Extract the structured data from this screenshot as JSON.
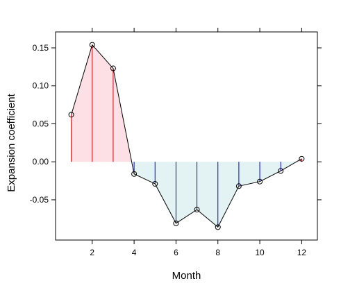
{
  "chart_data": {
    "type": "line",
    "title": "",
    "xlabel": "Month",
    "ylabel": "Expansion coefficient",
    "x": [
      1,
      2,
      3,
      4,
      5,
      6,
      7,
      8,
      9,
      10,
      11,
      12
    ],
    "values": [
      0.062,
      0.154,
      0.123,
      -0.016,
      -0.029,
      -0.081,
      -0.063,
      -0.086,
      -0.032,
      -0.026,
      -0.012,
      0.004
    ],
    "xlim": [
      0.25,
      12.75
    ],
    "ylim": [
      -0.103,
      0.171
    ],
    "xticks": [
      2,
      4,
      6,
      8,
      10,
      12
    ],
    "xtick_labels": [
      "2",
      "4",
      "6",
      "8",
      "10",
      "12"
    ],
    "yticks": [
      0.15,
      0.1,
      0.05,
      0.0,
      -0.05
    ],
    "ytick_labels": [
      "0.15",
      "0.10",
      "0.05",
      "0.00",
      "-0.05"
    ],
    "grid": false,
    "legend": "none",
    "colors": {
      "positive_fill": "#fde0e6",
      "negative_fill": "#e3f2f2",
      "positive_stem": "#dd0000",
      "negative_stem": "#0000ee",
      "line": "#000000",
      "marker": "#000000",
      "frame": "#000000"
    }
  }
}
